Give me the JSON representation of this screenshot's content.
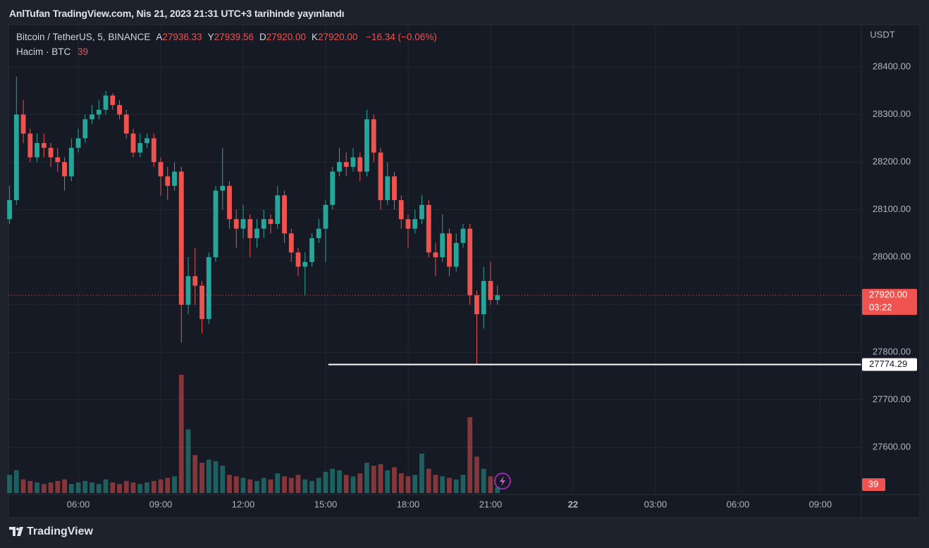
{
  "header": {
    "title": "AnlTufan TradingView.com, Nis 21, 2023 21:31 UTC+3 tarihinde yayınlandı"
  },
  "footer": {
    "brand": "TradingView"
  },
  "chart_data": {
    "type": "candlestick",
    "legend": {
      "symbol": "Bitcoin / TetherUS, 5, BINANCE",
      "ohlc": [
        {
          "key": "A",
          "value": "27936.33"
        },
        {
          "key": "Y",
          "value": "27939.56"
        },
        {
          "key": "D",
          "value": "27920.00"
        },
        {
          "key": "K",
          "value": "27920.00"
        }
      ],
      "change": "−16.34 (−0.06%)",
      "volume_title": "Hacim · BTC"
    },
    "currency": "USDT",
    "up_color": "#26a69a",
    "down_color": "#ef5350",
    "x": [
      3.5,
      3.75,
      4,
      4.25,
      4.5,
      4.75,
      5,
      5.25,
      5.5,
      5.75,
      6,
      6.25,
      6.5,
      6.75,
      7,
      7.25,
      7.5,
      7.75,
      8,
      8.25,
      8.5,
      8.75,
      9,
      9.25,
      9.5,
      9.75,
      10,
      10.25,
      10.5,
      10.75,
      11,
      11.25,
      11.5,
      11.75,
      12,
      12.25,
      12.5,
      12.75,
      13,
      13.25,
      13.5,
      13.75,
      14,
      14.25,
      14.5,
      14.75,
      15,
      15.25,
      15.5,
      15.75,
      16,
      16.25,
      16.5,
      16.75,
      17,
      17.25,
      17.5,
      17.75,
      18,
      18.25,
      18.5,
      18.75,
      19,
      19.25,
      19.5,
      19.75,
      20,
      20.25,
      20.5,
      20.75,
      21,
      21.25
    ],
    "open": [
      28080,
      28120,
      28300,
      28260,
      28210,
      28240,
      28230,
      28210,
      28200,
      28170,
      28230,
      28250,
      28290,
      28300,
      28310,
      28340,
      28320,
      28300,
      28260,
      28220,
      28240,
      28250,
      28200,
      28170,
      28150,
      28180,
      27900,
      27960,
      27940,
      27870,
      28000,
      28140,
      28150,
      28080,
      28060,
      28080,
      28040,
      28060,
      28080,
      28070,
      28130,
      28050,
      28010,
      27980,
      27990,
      28040,
      28060,
      28110,
      28180,
      28200,
      28190,
      28210,
      28180,
      28290,
      28220,
      28120,
      28170,
      28120,
      28080,
      28060,
      28080,
      28110,
      28010,
      28000,
      28050,
      27980,
      28030,
      28060,
      27920,
      27880,
      27950,
      27910
    ],
    "high": [
      28150,
      28380,
      28330,
      28270,
      28260,
      28260,
      28240,
      28230,
      28210,
      28250,
      28270,
      28300,
      28320,
      28330,
      28350,
      28345,
      28330,
      28310,
      28270,
      28260,
      28260,
      28260,
      28210,
      28190,
      28200,
      28190,
      28000,
      28020,
      27950,
      28010,
      28150,
      28230,
      28160,
      28100,
      28110,
      28090,
      28080,
      28100,
      28090,
      28150,
      28140,
      28060,
      28020,
      28010,
      28050,
      28080,
      28120,
      28190,
      28230,
      28220,
      28230,
      28220,
      28310,
      28300,
      28230,
      28200,
      28180,
      28130,
      28090,
      28100,
      28130,
      28120,
      28030,
      28090,
      28060,
      28050,
      28070,
      28070,
      27930,
      27980,
      27990,
      27940
    ],
    "low": [
      28070,
      28110,
      28240,
      28200,
      28200,
      28210,
      28190,
      28180,
      28140,
      28160,
      28220,
      28240,
      28280,
      28290,
      28300,
      28310,
      28290,
      28250,
      28210,
      28210,
      28230,
      28190,
      28130,
      28120,
      28140,
      27820,
      27880,
      27900,
      27840,
      27860,
      27990,
      28100,
      28060,
      28020,
      28040,
      28000,
      28020,
      28040,
      28050,
      28060,
      28030,
      27990,
      27960,
      27920,
      27980,
      28030,
      27990,
      28100,
      28170,
      28170,
      28180,
      28160,
      28170,
      28200,
      28100,
      28110,
      28100,
      28060,
      28020,
      28050,
      28070,
      28000,
      27960,
      27990,
      27960,
      27970,
      28020,
      27900,
      27775,
      27850,
      27900,
      27900
    ],
    "close": [
      28120,
      28300,
      28260,
      28210,
      28240,
      28230,
      28210,
      28200,
      28170,
      28230,
      28250,
      28290,
      28300,
      28310,
      28340,
      28320,
      28300,
      28260,
      28220,
      28240,
      28250,
      28200,
      28170,
      28150,
      28180,
      27900,
      27960,
      27940,
      27870,
      28000,
      28140,
      28150,
      28080,
      28060,
      28080,
      28040,
      28060,
      28080,
      28070,
      28130,
      28050,
      28010,
      27980,
      27990,
      28040,
      28060,
      28110,
      28180,
      28200,
      28190,
      28210,
      28180,
      28290,
      28220,
      28120,
      28170,
      28120,
      28080,
      28060,
      28080,
      28110,
      28010,
      28000,
      28050,
      27980,
      28030,
      28060,
      27920,
      27880,
      27950,
      27910,
      27920
    ],
    "volume": [
      120,
      150,
      90,
      80,
      70,
      60,
      70,
      80,
      90,
      60,
      70,
      80,
      70,
      60,
      90,
      70,
      60,
      80,
      70,
      60,
      70,
      80,
      90,
      100,
      110,
      780,
      420,
      250,
      200,
      220,
      210,
      180,
      120,
      110,
      100,
      90,
      80,
      100,
      90,
      130,
      110,
      100,
      120,
      90,
      80,
      100,
      140,
      160,
      150,
      120,
      110,
      130,
      200,
      180,
      190,
      150,
      170,
      130,
      110,
      120,
      260,
      160,
      120,
      110,
      100,
      90,
      120,
      500,
      240,
      160,
      110,
      39
    ],
    "xlim": [
      3.46,
      34.49
    ],
    "xticks": [
      {
        "value": 6,
        "label": "06:00"
      },
      {
        "value": 9,
        "label": "09:00"
      },
      {
        "value": 12,
        "label": "12:00"
      },
      {
        "value": 15,
        "label": "15:00"
      },
      {
        "value": 18,
        "label": "18:00"
      },
      {
        "value": 21,
        "label": "21:00"
      },
      {
        "value": 24,
        "label": "22"
      },
      {
        "value": 27,
        "label": "03:00"
      },
      {
        "value": 30,
        "label": "06:00"
      },
      {
        "value": 33,
        "label": "09:00"
      }
    ],
    "ylim": [
      27504,
      28489
    ],
    "yticks": [
      {
        "value": 27600,
        "label": "27600.00"
      },
      {
        "value": 27700,
        "label": "27700.00"
      },
      {
        "value": 27800,
        "label": "27800.00"
      },
      {
        "value": 27900,
        "label": "27900.00"
      },
      {
        "value": 28000,
        "label": "28000.00"
      },
      {
        "value": 28100,
        "label": "28100.00"
      },
      {
        "value": 28200,
        "label": "28200.00"
      },
      {
        "value": 28300,
        "label": "28300.00"
      },
      {
        "value": 28400,
        "label": "28400.00"
      }
    ],
    "last_price": {
      "value": 27920,
      "label": "27920.00",
      "countdown": "03:22"
    },
    "hline": {
      "value": 27774.29,
      "x_start": 15.1
    },
    "grid": true
  }
}
